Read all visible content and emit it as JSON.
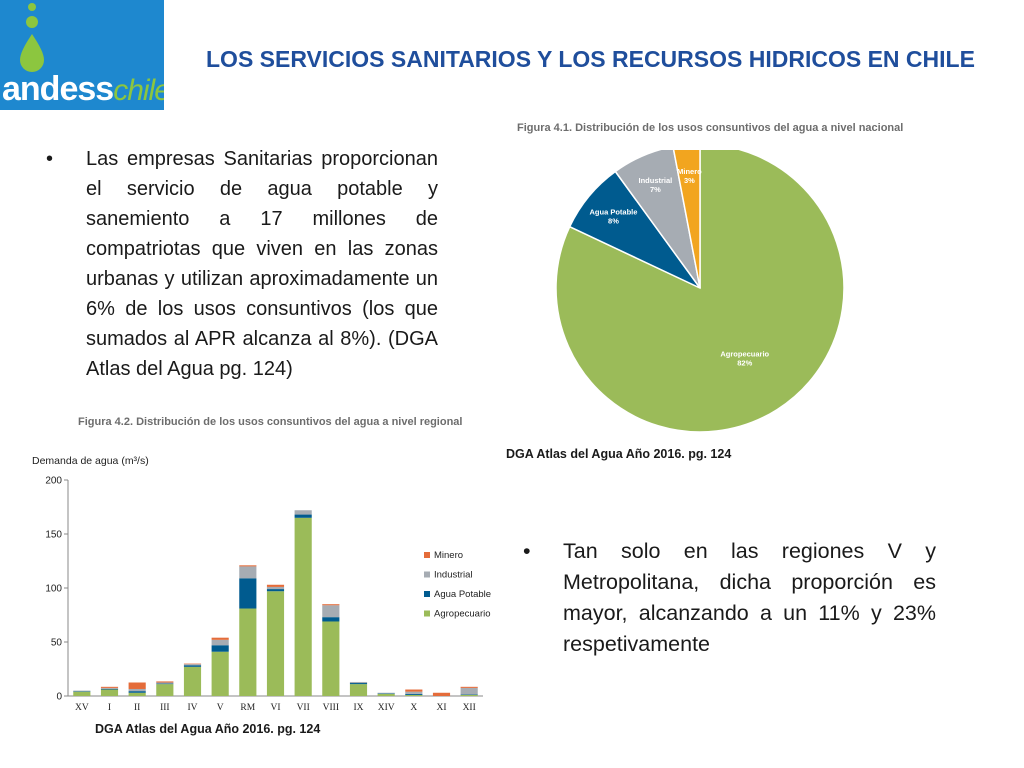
{
  "logo": {
    "main": "andess",
    "sub": "chile"
  },
  "page_title": "LOS SERVICIOS SANITARIOS Y LOS RECURSOS HIDRICOS EN CHILE",
  "bullets": {
    "left": "Las empresas Sanitarias proporcionan el servicio de agua potable y sanemiento a 17 millones de compatriotas que viven en las zonas urbanas y utilizan aproximadamente un 6% de  los usos consuntivos (los que sumados al APR alcanza al 8%). (DGA Atlas del Agua pg. 124)",
    "right": "Tan solo en las regiones  V y Metropolitana, dicha proporción es mayor, alcanzando a un 11% y 23% respetivamente"
  },
  "sources": {
    "pie": "DGA Atlas del Agua Año 2016. pg. 124",
    "bar": "DGA Atlas del Agua Año 2016. pg. 124"
  },
  "colors": {
    "agropecuario": "#9bbb59",
    "agua_potable": "#005b8f",
    "industrial": "#a6acb3",
    "minero": "#f2a51f",
    "minero_bar": "#e46c3a"
  },
  "chart_data": [
    {
      "type": "pie",
      "title": "Figura 4.1. Distribución de los usos consuntivos del agua a nivel nacional",
      "slices": [
        {
          "label": "Agropecuario",
          "pct_label": "82%",
          "value": 82
        },
        {
          "label": "Agua Potable",
          "pct_label": "8%",
          "value": 8
        },
        {
          "label": "Industrial",
          "pct_label": "7%",
          "value": 7
        },
        {
          "label": "Minero",
          "pct_label": "3%",
          "value": 3
        }
      ]
    },
    {
      "type": "bar",
      "stacked": true,
      "title": "Figura 4.2. Distribución de los usos consuntivos del agua a nivel regional",
      "ylabel": "Demanda de agua (m³/s)",
      "ylim": [
        0,
        200
      ],
      "yticks": [
        0,
        50,
        100,
        150,
        200
      ],
      "legend_position": "right",
      "categories": [
        "XV",
        "I",
        "II",
        "III",
        "IV",
        "V",
        "RM",
        "VI",
        "VII",
        "VIII",
        "IX",
        "XIV",
        "X",
        "XI",
        "XII"
      ],
      "series": [
        {
          "name": "Agropecuario",
          "values": [
            4,
            6,
            3,
            11,
            27,
            41,
            81,
            97,
            165,
            69,
            11,
            2,
            1,
            0,
            1
          ]
        },
        {
          "name": "Agua Potable",
          "values": [
            0.5,
            0.5,
            1.5,
            0.5,
            1.5,
            6,
            28,
            2,
            3,
            4,
            1,
            0.5,
            1,
            0,
            0.5
          ]
        },
        {
          "name": "Industrial",
          "values": [
            0.5,
            1,
            2,
            1,
            1,
            5,
            11,
            2,
            4,
            11,
            1,
            0.5,
            2,
            0,
            6
          ]
        },
        {
          "name": "Minero",
          "values": [
            0,
            1,
            6,
            1,
            0.5,
            2,
            1,
            2,
            0,
            1,
            0,
            0,
            2,
            3,
            1
          ]
        }
      ]
    }
  ]
}
